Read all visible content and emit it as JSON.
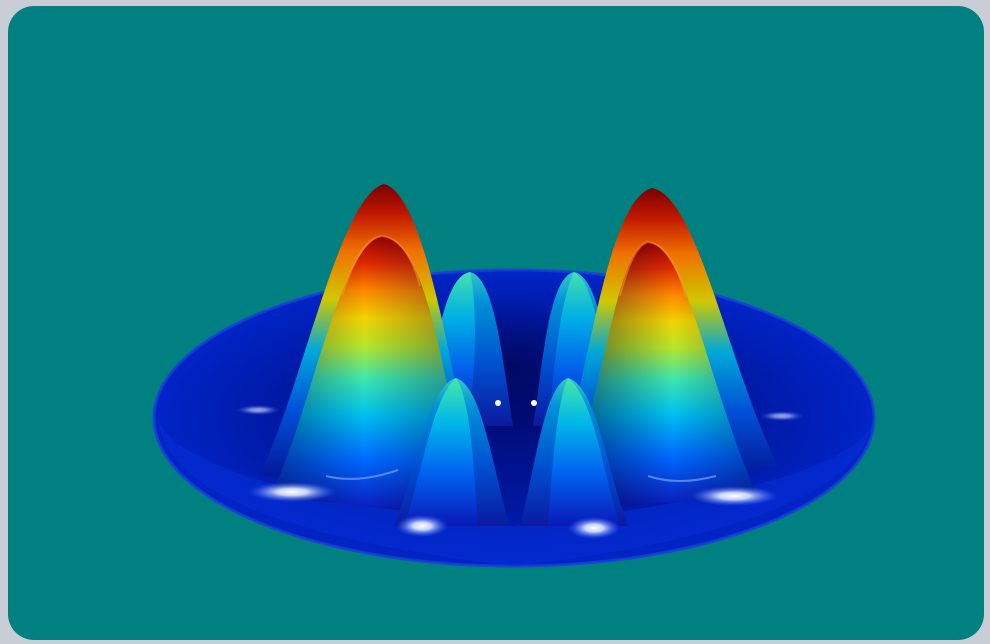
{
  "image": {
    "subject": "surface-plot-render",
    "colors": {
      "page_border": "#c9ced6",
      "panel_background": "#008080",
      "base_dark": "#000a6e",
      "base_mid": "#0021b8",
      "base_light": "#1f4de0",
      "colormap": [
        "#00008f",
        "#0033ff",
        "#00b3ff",
        "#29e6b0",
        "#e6e600",
        "#ff8c00",
        "#d11a00",
        "#8f0000"
      ]
    },
    "features": [
      "large-peak-left",
      "large-peak-right",
      "small-peak-back-left",
      "small-peak-back-right",
      "small-peak-front-left",
      "small-peak-front-right",
      "specular-highlights"
    ]
  }
}
